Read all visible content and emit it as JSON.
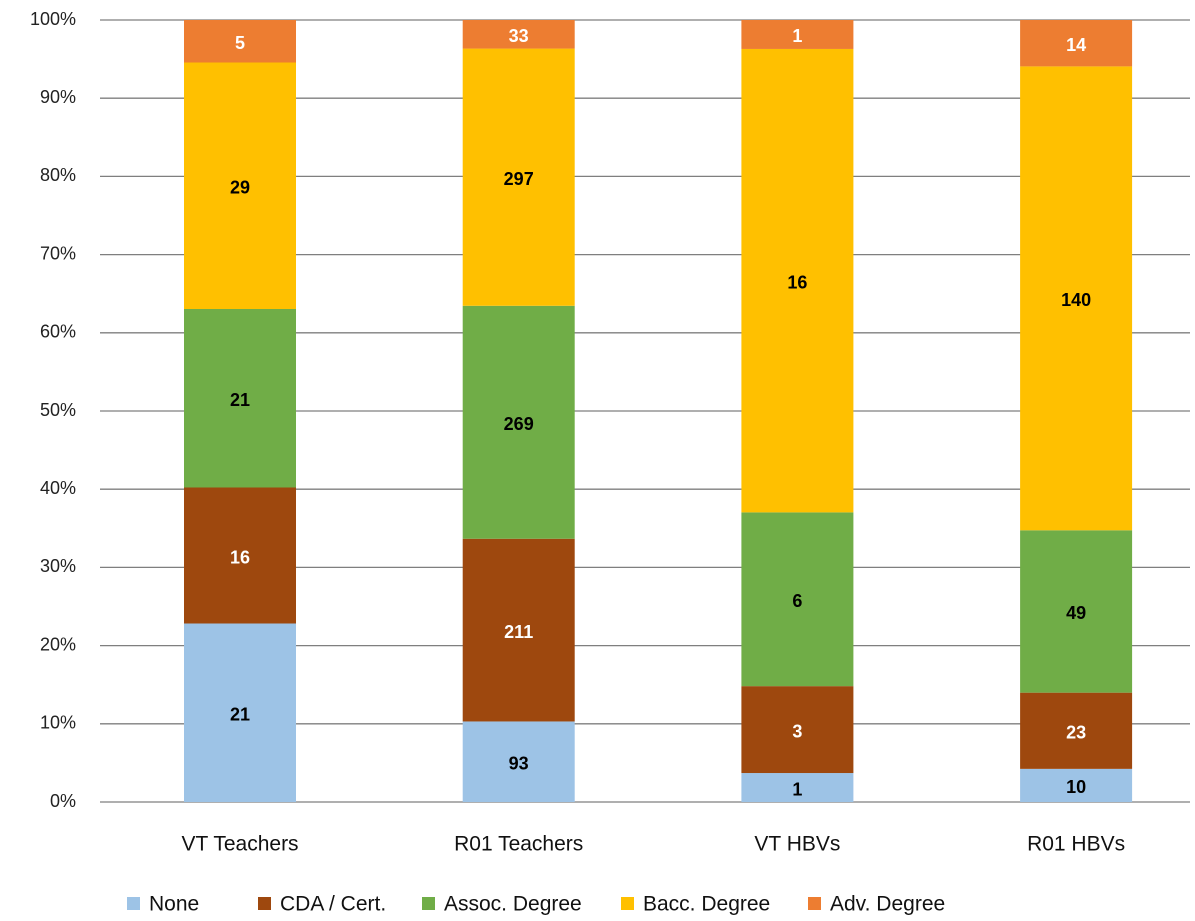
{
  "chart_data": {
    "type": "stacked_bar_percent",
    "categories": [
      "VT Teachers",
      "R01 Teachers",
      "VT HBVs",
      "R01 HBVs"
    ],
    "series": [
      {
        "name": "None",
        "color": "#9dc3e6",
        "label_color": "#000000",
        "values": [
          21,
          93,
          1,
          10
        ]
      },
      {
        "name": "CDA / Cert.",
        "color": "#9e480e",
        "label_color": "#ffffff",
        "values": [
          16,
          211,
          3,
          23
        ]
      },
      {
        "name": "Assoc. Degree",
        "color": "#70ad47",
        "label_color": "#000000",
        "values": [
          21,
          269,
          6,
          49
        ]
      },
      {
        "name": "Bacc. Degree",
        "color": "#ffc000",
        "label_color": "#000000",
        "values": [
          29,
          297,
          16,
          140
        ]
      },
      {
        "name": "Adv. Degree",
        "color": "#ed7d31",
        "label_color": "#ffffff",
        "values": [
          5,
          33,
          1,
          14
        ]
      }
    ],
    "ylim": [
      0,
      100
    ],
    "yticks": [
      {
        "value": 0,
        "label": "0%"
      },
      {
        "value": 10,
        "label": "10%"
      },
      {
        "value": 20,
        "label": "20%"
      },
      {
        "value": 30,
        "label": "30%"
      },
      {
        "value": 40,
        "label": "40%"
      },
      {
        "value": 50,
        "label": "50%"
      },
      {
        "value": 60,
        "label": "60%"
      },
      {
        "value": 70,
        "label": "70%"
      },
      {
        "value": 80,
        "label": "80%"
      },
      {
        "value": 90,
        "label": "90%"
      },
      {
        "value": 100,
        "label": "100%"
      }
    ],
    "grid": true,
    "legend": "bottom"
  }
}
